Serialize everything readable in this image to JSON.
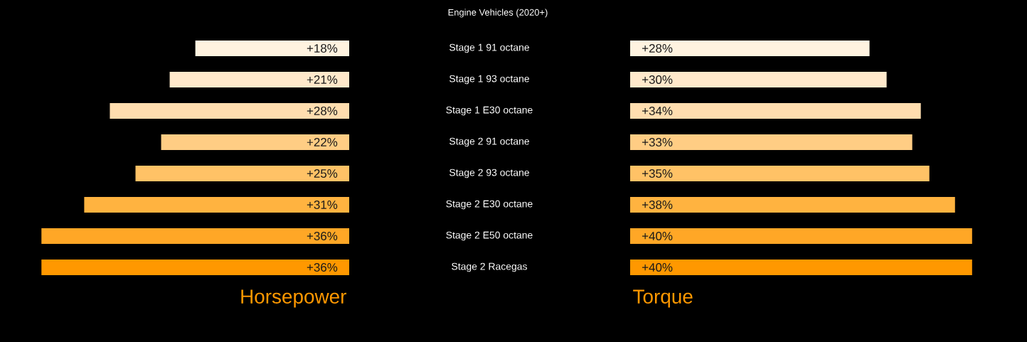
{
  "chart_data": [
    {
      "type": "bar",
      "orientation": "horizontal",
      "title": "Engine Vehicles (2020+)",
      "xlabel": "Horsepower",
      "categories": [
        "Stage 1 91 octane",
        "Stage 1 93 octane",
        "Stage 1 E30 octane",
        "Stage 2 91 octane",
        "Stage 2 93 octane",
        "Stage 2 E30 octane",
        "Stage 2 E50 octane",
        "Stage 2 Racegas"
      ],
      "values": [
        18,
        21,
        28,
        22,
        25,
        31,
        36,
        36
      ],
      "value_labels": [
        "+18%",
        "+21%",
        "+28%",
        "+22%",
        "+25%",
        "+31%",
        "+36%",
        "+36%"
      ],
      "colors": [
        "#fff3e0",
        "#ffe9cb",
        "#ffddaf",
        "#ffcd84",
        "#ffc266",
        "#ffb340",
        "#ffa726",
        "#ff9800"
      ],
      "tick_labels": "y"
    },
    {
      "type": "bar",
      "orientation": "horizontal",
      "xlabel": "Torque",
      "categories": [
        null,
        null,
        null,
        null,
        null,
        null,
        null,
        null
      ],
      "values": [
        28,
        30,
        34,
        33,
        35,
        38,
        40,
        40
      ],
      "value_labels": [
        "+28%",
        "+30%",
        "+34%",
        "+33%",
        "+35%",
        "+38%",
        "+40%",
        "+40%"
      ],
      "colors": [
        "#fff3e0",
        "#ffe9cb",
        "#ffddaf",
        "#ffcd84",
        "#ffc266",
        "#ffb340",
        "#ffa726",
        "#ff9800"
      ]
    }
  ]
}
